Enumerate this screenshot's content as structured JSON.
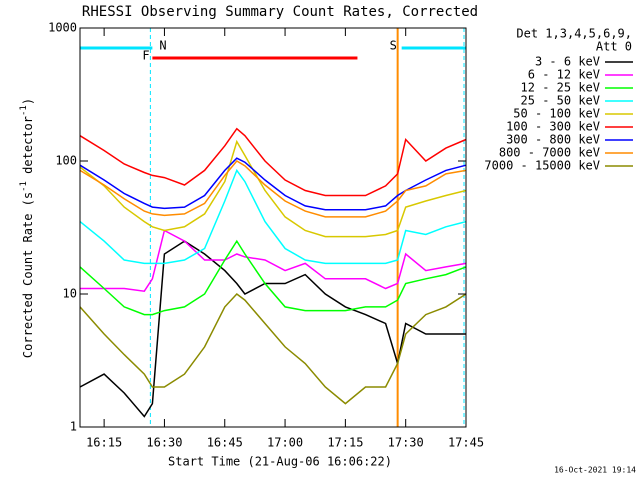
{
  "chart_data": {
    "type": "line",
    "title": "RHESSI Observing Summary Count Rates, Corrected",
    "xlabel": "Start Time (21-Aug-06 16:06:22)",
    "ylabel": {
      "text": "Corrected Count Rate (s",
      "sup1": "-1",
      "mid": " detector",
      "sup2": "-1",
      "end": ")"
    },
    "legend_title": [
      "Det 1,3,4,5,6,9,",
      "Att 0"
    ],
    "footer": "16-Oct-2021 19:14",
    "log_y": true,
    "xlim": [
      "16:09",
      "17:45"
    ],
    "xticks": [
      "16:15",
      "16:30",
      "16:45",
      "17:00",
      "17:15",
      "17:30",
      "17:45"
    ],
    "ylim": [
      1,
      1000
    ],
    "yticks": [
      1,
      10,
      100,
      1000
    ],
    "flags": [
      {
        "label": "N",
        "color": "#00e5ff",
        "start": "16:09",
        "end": "16:27"
      },
      {
        "label": "F",
        "color": "#ff0000",
        "start": "16:27",
        "end": "17:18"
      },
      {
        "label": "S",
        "color": "#ff8c00",
        "start": "17:28",
        "end": "17:28"
      },
      {
        "color": "#00e5ff",
        "start": "17:29",
        "end": "17:45"
      }
    ],
    "x": [
      "16:09",
      "16:15",
      "16:20",
      "16:25",
      "16:27",
      "16:30",
      "16:35",
      "16:40",
      "16:45",
      "16:48",
      "16:50",
      "16:55",
      "17:00",
      "17:05",
      "17:10",
      "17:15",
      "17:20",
      "17:25",
      "17:28",
      "17:30",
      "17:35",
      "17:40",
      "17:45"
    ],
    "series": [
      {
        "name": "3 - 6 keV",
        "color": "#000000",
        "values": [
          2,
          2.5,
          1.8,
          1.2,
          1.5,
          20,
          25,
          20,
          15,
          12,
          10,
          12,
          12,
          14,
          10,
          8,
          7,
          6,
          3,
          6,
          5,
          5,
          5
        ]
      },
      {
        "name": "6 - 12 keV",
        "color": "#ff00ff",
        "values": [
          11,
          11,
          11,
          10.5,
          13,
          30,
          25,
          18,
          18,
          20,
          19,
          18,
          15,
          17,
          13,
          13,
          13,
          11,
          12,
          20,
          15,
          16,
          17
        ]
      },
      {
        "name": "12 - 25 keV",
        "color": "#00ff00",
        "values": [
          16,
          11,
          8,
          7,
          7,
          7.5,
          8,
          10,
          18,
          25,
          20,
          12,
          8,
          7.5,
          7.5,
          7.5,
          8,
          8,
          9,
          12,
          13,
          14,
          16
        ]
      },
      {
        "name": "25 - 50 keV",
        "color": "#00ffff",
        "values": [
          35,
          25,
          18,
          17,
          17,
          17,
          18,
          22,
          50,
          85,
          70,
          35,
          22,
          18,
          17,
          17,
          17,
          17,
          18,
          30,
          28,
          32,
          35
        ]
      },
      {
        "name": "50 - 100 keV",
        "color": "#d8c800",
        "values": [
          90,
          65,
          45,
          35,
          32,
          30,
          32,
          40,
          70,
          140,
          110,
          60,
          38,
          30,
          27,
          27,
          27,
          28,
          30,
          45,
          50,
          55,
          60
        ]
      },
      {
        "name": "100 - 300 keV",
        "color": "#ff0000",
        "values": [
          155,
          120,
          95,
          82,
          78,
          75,
          66,
          85,
          130,
          175,
          155,
          100,
          72,
          60,
          55,
          55,
          55,
          65,
          80,
          145,
          100,
          125,
          145
        ]
      },
      {
        "name": "300 - 800 keV",
        "color": "#0000ff",
        "values": [
          93,
          72,
          57,
          48,
          45,
          44,
          45,
          55,
          85,
          105,
          98,
          72,
          55,
          46,
          43,
          43,
          43,
          46,
          55,
          60,
          72,
          85,
          93
        ]
      },
      {
        "name": "800 - 7000 keV",
        "color": "#ff8c00",
        "values": [
          85,
          66,
          52,
          42,
          40,
          39,
          40,
          48,
          78,
          100,
          92,
          66,
          50,
          42,
          38,
          38,
          38,
          42,
          50,
          60,
          65,
          80,
          85
        ]
      },
      {
        "name": "7000 - 15000 keV",
        "color": "#8b8b00",
        "values": [
          8,
          5,
          3.5,
          2.5,
          2,
          2,
          2.5,
          4,
          8,
          10,
          9,
          6,
          4,
          3,
          2,
          1.5,
          2,
          2,
          3,
          5,
          7,
          8,
          10
        ]
      }
    ]
  }
}
